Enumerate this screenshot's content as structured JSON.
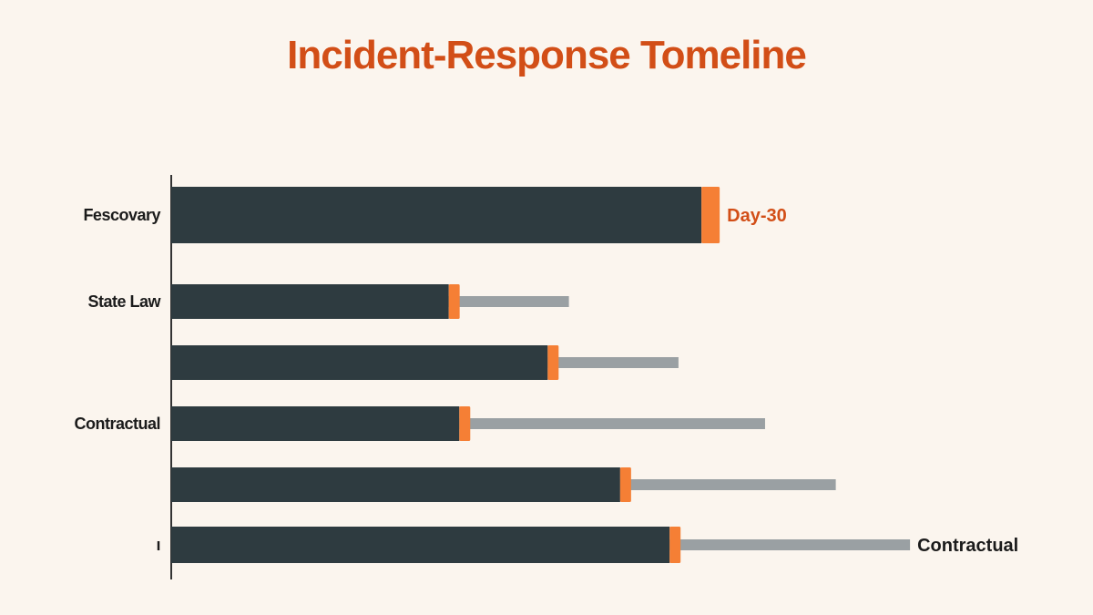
{
  "colors": {
    "background": "#fbf5ee",
    "title": "#d24e17",
    "bar": "#2e3b40",
    "marker": "#f57f35",
    "whisker": "#9aa0a3",
    "axis": "#333333",
    "day_label": "#d24e17",
    "end_label": "#1b1b1b"
  },
  "chart_data": {
    "type": "bar",
    "orientation": "horizontal",
    "title": "Incident-Response Tomeline",
    "categories": [
      "Fescovary",
      "State Law",
      "",
      "Contractual",
      "",
      "ı"
    ],
    "values": [
      30,
      15.7,
      21.3,
      16.3,
      25.4,
      28.2
    ],
    "whisker_end": [
      null,
      22.5,
      28.7,
      33.6,
      37.6,
      41.8
    ],
    "xlim": [
      0,
      47
    ],
    "annotations": [
      {
        "row": 0,
        "text": "Day-30",
        "color": "#d24e17"
      },
      {
        "row": 5,
        "text": "Contractual",
        "color": "#1b1b1b"
      }
    ],
    "grid": false,
    "legend": "none"
  }
}
